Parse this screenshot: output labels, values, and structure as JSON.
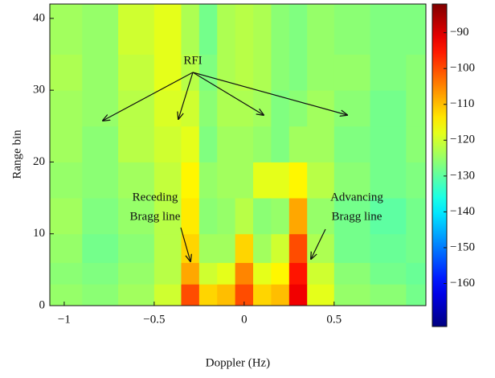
{
  "chart_data": {
    "type": "heatmap",
    "x_label": "Doppler (Hz)",
    "y_label": "Range bin",
    "x_bins": [
      -1.08,
      -0.9,
      -0.7,
      -0.5,
      -0.35,
      -0.25,
      -0.15,
      -0.05,
      0.05,
      0.15,
      0.25,
      0.35,
      0.5,
      0.7,
      0.9,
      1.01
    ],
    "y_bins": [
      0,
      3,
      6,
      10,
      15,
      20,
      25,
      30,
      35,
      42
    ],
    "values": [
      [
        -125,
        -126,
        -124,
        -120,
        -100,
        -112,
        -110,
        -100,
        -112,
        -110,
        -92,
        -118,
        -125,
        -126,
        -128
      ],
      [
        -126,
        -127,
        -125,
        -122,
        -108,
        -120,
        -118,
        -105,
        -118,
        -115,
        -95,
        -120,
        -126,
        -128,
        -129
      ],
      [
        -125,
        -128,
        -126,
        -122,
        -112,
        -124,
        -124,
        -112,
        -124,
        -120,
        -100,
        -123,
        -128,
        -129,
        -128
      ],
      [
        -124,
        -127,
        -125,
        -122,
        -114,
        -126,
        -125,
        -122,
        -126,
        -125,
        -108,
        -125,
        -128,
        -130,
        -128
      ],
      [
        -125,
        -126,
        -124,
        -121,
        -115,
        -125,
        -124,
        -124,
        -118,
        -118,
        -115,
        -122,
        -126,
        -128,
        -127
      ],
      [
        -124,
        -126,
        -122,
        -120,
        -118,
        -127,
        -124,
        -124,
        -125,
        -127,
        -124,
        -124,
        -127,
        -128,
        -126
      ],
      [
        -124,
        -125,
        -122,
        -119,
        -120,
        -126,
        -123,
        -123,
        -124,
        -127,
        -126,
        -124,
        -126,
        -128,
        -126
      ],
      [
        -123,
        -125,
        -121,
        -118,
        -122,
        -127,
        -123,
        -122,
        -123,
        -126,
        -127,
        -125,
        -125,
        -127,
        -126
      ],
      [
        -124,
        -125,
        -120,
        -118,
        -123,
        -128,
        -123,
        -122,
        -123,
        -126,
        -127,
        -125,
        -126,
        -127,
        -127
      ]
    ],
    "colormap": "jet",
    "xlim": [
      -1.08,
      1.01
    ],
    "ylim": [
      0,
      42
    ],
    "clim": [
      -172,
      -82
    ],
    "xticks": [
      {
        "value": -1,
        "label": "−1"
      },
      {
        "value": -0.5,
        "label": "−0.5"
      },
      0,
      0.5
    ],
    "yticks": [
      0,
      10,
      20,
      30,
      40
    ],
    "cticks": [
      {
        "value": -90,
        "label": "−90"
      },
      {
        "value": -100,
        "label": "−100"
      },
      {
        "value": -110,
        "label": "−110"
      },
      {
        "value": -120,
        "label": "−120"
      },
      {
        "value": -130,
        "label": "−130"
      },
      {
        "value": -140,
        "label": "−140"
      },
      {
        "value": -150,
        "label": "−150"
      },
      {
        "value": -160,
        "label": "−160"
      }
    ],
    "annotations": [
      "RFI",
      "Receding",
      "Bragg line",
      "Advancing",
      "Bragg line"
    ]
  }
}
